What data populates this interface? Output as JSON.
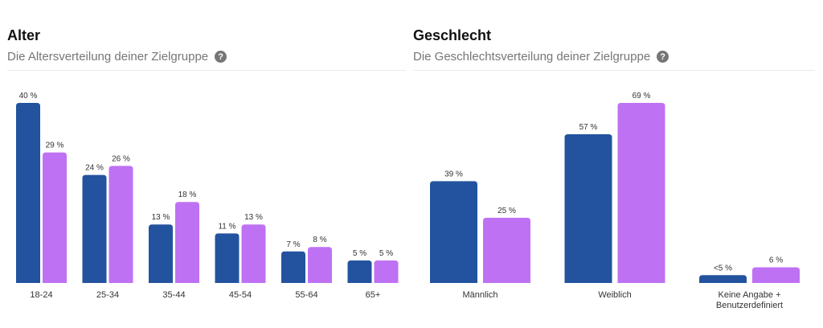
{
  "age": {
    "title": "Alter",
    "subtitle": "Die Altersverteilung deiner Zielgruppe",
    "help_icon": "question-circle-icon"
  },
  "gender": {
    "title": "Geschlecht",
    "subtitle": "Die Geschlechtsverteilung deiner Zielgruppe",
    "help_icon": "question-circle-icon"
  },
  "colors": {
    "series_a": "#23539f",
    "series_b": "#bf71f3"
  },
  "chart_data": [
    {
      "type": "bar",
      "title": "Alter",
      "categories": [
        "18-24",
        "25-34",
        "35-44",
        "45-54",
        "55-64",
        "65+"
      ],
      "series": [
        {
          "values": [
            40,
            24,
            13,
            11,
            7,
            5
          ],
          "labels": [
            "40 %",
            "24 %",
            "13 %",
            "11 %",
            "7 %",
            "5 %"
          ],
          "color": "#23539f"
        },
        {
          "values": [
            29,
            26,
            18,
            13,
            8,
            5
          ],
          "labels": [
            "29 %",
            "26 %",
            "18 %",
            "13 %",
            "8 %",
            "5 %"
          ],
          "color": "#bf71f3"
        }
      ],
      "ylim": [
        0,
        40
      ],
      "grid": false,
      "legend": "none"
    },
    {
      "type": "bar",
      "title": "Geschlecht",
      "categories": [
        "Männlich",
        "Weiblich",
        "Keine Angabe + Benutzerdefiniert"
      ],
      "series": [
        {
          "values": [
            39,
            57,
            3
          ],
          "labels": [
            "39 %",
            "57 %",
            "<5 %"
          ],
          "color": "#23539f"
        },
        {
          "values": [
            25,
            69,
            6
          ],
          "labels": [
            "25 %",
            "69 %",
            "6 %"
          ],
          "color": "#bf71f3"
        }
      ],
      "ylim": [
        0,
        69
      ],
      "grid": false,
      "legend": "none"
    }
  ]
}
